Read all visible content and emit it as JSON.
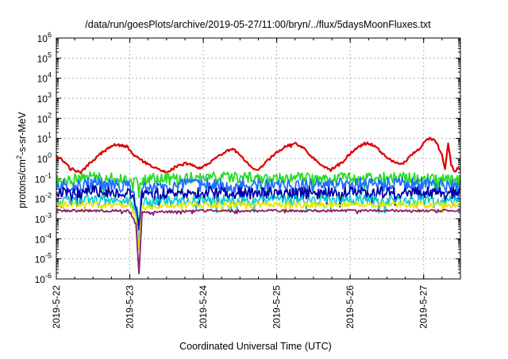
{
  "chart_data": {
    "type": "line",
    "title": "/data/run/goesPlots/archive/2019-05-27/11:00/bryn/../flux/5daysMoonFluxes.txt",
    "xlabel": "Coordinated Universal Time (UTC)",
    "ylabel": {
      "base": "protons/cm",
      "sup": "2",
      "rest": "-s-sr-MeV"
    },
    "y_scale": "log",
    "ylim": [
      1e-06,
      1000000.0
    ],
    "xlim": [
      "2019-05-22T00:00",
      "2019-05-27T12:00"
    ],
    "grid": true,
    "y_ticks": [
      {
        "value": 1e-06,
        "base": "10",
        "exp": "-6"
      },
      {
        "value": 1e-05,
        "base": "10",
        "exp": "-5"
      },
      {
        "value": 0.0001,
        "base": "10",
        "exp": "-4"
      },
      {
        "value": 0.001,
        "base": "10",
        "exp": "-3"
      },
      {
        "value": 0.01,
        "base": "10",
        "exp": "-2"
      },
      {
        "value": 0.1,
        "base": "10",
        "exp": "-1"
      },
      {
        "value": 1,
        "base": "10",
        "exp": "0"
      },
      {
        "value": 10.0,
        "base": "10",
        "exp": "1"
      },
      {
        "value": 100.0,
        "base": "10",
        "exp": "2"
      },
      {
        "value": 1000.0,
        "base": "10",
        "exp": "3"
      },
      {
        "value": 10000.0,
        "base": "10",
        "exp": "4"
      },
      {
        "value": 100000.0,
        "base": "10",
        "exp": "5"
      },
      {
        "value": 1000000.0,
        "base": "10",
        "exp": "6"
      }
    ],
    "x_ticks": [
      {
        "value": "2019-05-22T00:00",
        "label": "2019-5-22"
      },
      {
        "value": "2019-05-23T00:00",
        "label": "2019-5-23"
      },
      {
        "value": "2019-05-24T00:00",
        "label": "2019-5-24"
      },
      {
        "value": "2019-05-25T00:00",
        "label": "2019-5-25"
      },
      {
        "value": "2019-05-26T00:00",
        "label": "2019-5-26"
      },
      {
        "value": "2019-05-27T00:00",
        "label": "2019-5-27"
      }
    ],
    "series": [
      {
        "color": "#dd0000",
        "width": 2.2,
        "jitter": 0.06,
        "points": [
          [
            "2019-05-22T00:00",
            1.5
          ],
          [
            "2019-05-22T03:00",
            0.6
          ],
          [
            "2019-05-22T06:00",
            0.25
          ],
          [
            "2019-05-22T08:00",
            0.2
          ],
          [
            "2019-05-22T11:00",
            0.6
          ],
          [
            "2019-05-22T15:00",
            2.0
          ],
          [
            "2019-05-22T19:00",
            5.0
          ],
          [
            "2019-05-22T23:00",
            4.0
          ],
          [
            "2019-05-23T02:00",
            1.2
          ],
          [
            "2019-05-23T06:00",
            0.5
          ],
          [
            "2019-05-23T09:00",
            0.3
          ],
          [
            "2019-05-23T12:00",
            0.2
          ],
          [
            "2019-05-23T15:00",
            0.4
          ],
          [
            "2019-05-23T19:00",
            0.6
          ],
          [
            "2019-05-23T23:00",
            0.3
          ],
          [
            "2019-05-24T03:00",
            0.8
          ],
          [
            "2019-05-24T08:00",
            2.5
          ],
          [
            "2019-05-24T10:00",
            2.8
          ],
          [
            "2019-05-24T13:00",
            1.0
          ],
          [
            "2019-05-24T16:00",
            0.3
          ],
          [
            "2019-05-24T18:00",
            0.25
          ],
          [
            "2019-05-24T21:00",
            0.8
          ],
          [
            "2019-05-25T00:00",
            2.0
          ],
          [
            "2019-05-25T03:00",
            4.0
          ],
          [
            "2019-05-25T06:00",
            6.0
          ],
          [
            "2019-05-25T09:00",
            3.0
          ],
          [
            "2019-05-25T12:00",
            1.0
          ],
          [
            "2019-05-25T15:00",
            0.4
          ],
          [
            "2019-05-25T18:00",
            0.3
          ],
          [
            "2019-05-25T21:00",
            0.6
          ],
          [
            "2019-05-26T01:00",
            2.5
          ],
          [
            "2019-05-26T05:00",
            6.0
          ],
          [
            "2019-05-26T08:00",
            4.5
          ],
          [
            "2019-05-26T11:00",
            1.5
          ],
          [
            "2019-05-26T14:00",
            0.7
          ],
          [
            "2019-05-26T17:00",
            0.5
          ],
          [
            "2019-05-26T20:00",
            1.5
          ],
          [
            "2019-05-26T23:00",
            3.5
          ],
          [
            "2019-05-27T00:00",
            6.0
          ],
          [
            "2019-05-27T02:00",
            10.0
          ],
          [
            "2019-05-27T04:00",
            7.0
          ],
          [
            "2019-05-27T06:00",
            1.5
          ],
          [
            "2019-05-27T07:00",
            0.3
          ],
          [
            "2019-05-27T08:00",
            5.0
          ],
          [
            "2019-05-27T09:00",
            0.6
          ],
          [
            "2019-05-27T10:00",
            0.2
          ],
          [
            "2019-05-27T11:00",
            0.3
          ],
          [
            "2019-05-27T12:00",
            0.3
          ]
        ]
      },
      {
        "color": "#22dd22",
        "width": 1.8,
        "jitter": 0.28,
        "points": [
          [
            "2019-05-22T00:00",
            0.08
          ],
          [
            "2019-05-22T12:00",
            0.12
          ],
          [
            "2019-05-23T00:00",
            0.09
          ],
          [
            "2019-05-23T03:00",
            0.06
          ],
          [
            "2019-05-23T06:00",
            0.1
          ],
          [
            "2019-05-24T00:00",
            0.12
          ],
          [
            "2019-05-25T00:00",
            0.1
          ],
          [
            "2019-05-26T00:00",
            0.12
          ],
          [
            "2019-05-27T00:00",
            0.1
          ],
          [
            "2019-05-27T12:00",
            0.09
          ]
        ]
      },
      {
        "color": "#1f6fff",
        "width": 1.8,
        "jitter": 0.35,
        "points": [
          [
            "2019-05-22T00:00",
            0.04
          ],
          [
            "2019-05-22T12:00",
            0.05
          ],
          [
            "2019-05-23T00:00",
            0.04
          ],
          [
            "2019-05-23T02:00",
            0.008
          ],
          [
            "2019-05-23T03:00",
            0.0004
          ],
          [
            "2019-05-23T04:00",
            0.03
          ],
          [
            "2019-05-24T00:00",
            0.05
          ],
          [
            "2019-05-25T00:00",
            0.04
          ],
          [
            "2019-05-26T00:00",
            0.05
          ],
          [
            "2019-05-27T00:00",
            0.05
          ],
          [
            "2019-05-27T12:00",
            0.04
          ]
        ]
      },
      {
        "color": "#0000aa",
        "width": 1.8,
        "jitter": 0.3,
        "points": [
          [
            "2019-05-22T00:00",
            0.02
          ],
          [
            "2019-05-22T12:00",
            0.025
          ],
          [
            "2019-05-23T00:00",
            0.02
          ],
          [
            "2019-05-23T02:00",
            0.004
          ],
          [
            "2019-05-23T03:00",
            0.0002
          ],
          [
            "2019-05-23T04:00",
            0.015
          ],
          [
            "2019-05-24T00:00",
            0.02
          ],
          [
            "2019-05-25T00:00",
            0.018
          ],
          [
            "2019-05-26T00:00",
            0.02
          ],
          [
            "2019-05-27T00:00",
            0.02
          ],
          [
            "2019-05-27T12:00",
            0.018
          ]
        ]
      },
      {
        "color": "#00cccc",
        "width": 1.6,
        "jitter": 0.25,
        "points": [
          [
            "2019-05-22T00:00",
            0.008
          ],
          [
            "2019-05-22T12:00",
            0.009
          ],
          [
            "2019-05-23T00:00",
            0.008
          ],
          [
            "2019-05-23T02:00",
            0.002
          ],
          [
            "2019-05-23T03:00",
            0.0001
          ],
          [
            "2019-05-23T04:00",
            0.007
          ],
          [
            "2019-05-24T00:00",
            0.009
          ],
          [
            "2019-05-25T00:00",
            0.008
          ],
          [
            "2019-05-26T00:00",
            0.009
          ],
          [
            "2019-05-27T00:00",
            0.008
          ],
          [
            "2019-05-27T12:00",
            0.008
          ]
        ]
      },
      {
        "color": "#e6e600",
        "width": 1.8,
        "jitter": 0.15,
        "points": [
          [
            "2019-05-22T00:00",
            0.005
          ],
          [
            "2019-05-22T12:00",
            0.005
          ],
          [
            "2019-05-23T00:00",
            0.005
          ],
          [
            "2019-05-23T02:00",
            0.001
          ],
          [
            "2019-05-23T03:00",
            3e-05
          ],
          [
            "2019-05-23T04:00",
            0.004
          ],
          [
            "2019-05-24T00:00",
            0.005
          ],
          [
            "2019-05-25T00:00",
            0.005
          ],
          [
            "2019-05-26T00:00",
            0.005
          ],
          [
            "2019-05-27T00:00",
            0.005
          ],
          [
            "2019-05-27T12:00",
            0.005
          ]
        ]
      },
      {
        "color": "#8b1a6b",
        "width": 1.8,
        "jitter": 0.06,
        "points": [
          [
            "2019-05-22T00:00",
            0.0025
          ],
          [
            "2019-05-22T12:00",
            0.0025
          ],
          [
            "2019-05-23T00:00",
            0.0025
          ],
          [
            "2019-05-23T02:00",
            0.0005
          ],
          [
            "2019-05-23T03:00",
            1.7e-06
          ],
          [
            "2019-05-23T04:00",
            0.002
          ],
          [
            "2019-05-24T00:00",
            0.0025
          ],
          [
            "2019-05-25T00:00",
            0.0025
          ],
          [
            "2019-05-26T00:00",
            0.0025
          ],
          [
            "2019-05-27T00:00",
            0.0025
          ],
          [
            "2019-05-27T12:00",
            0.0025
          ]
        ]
      }
    ]
  }
}
